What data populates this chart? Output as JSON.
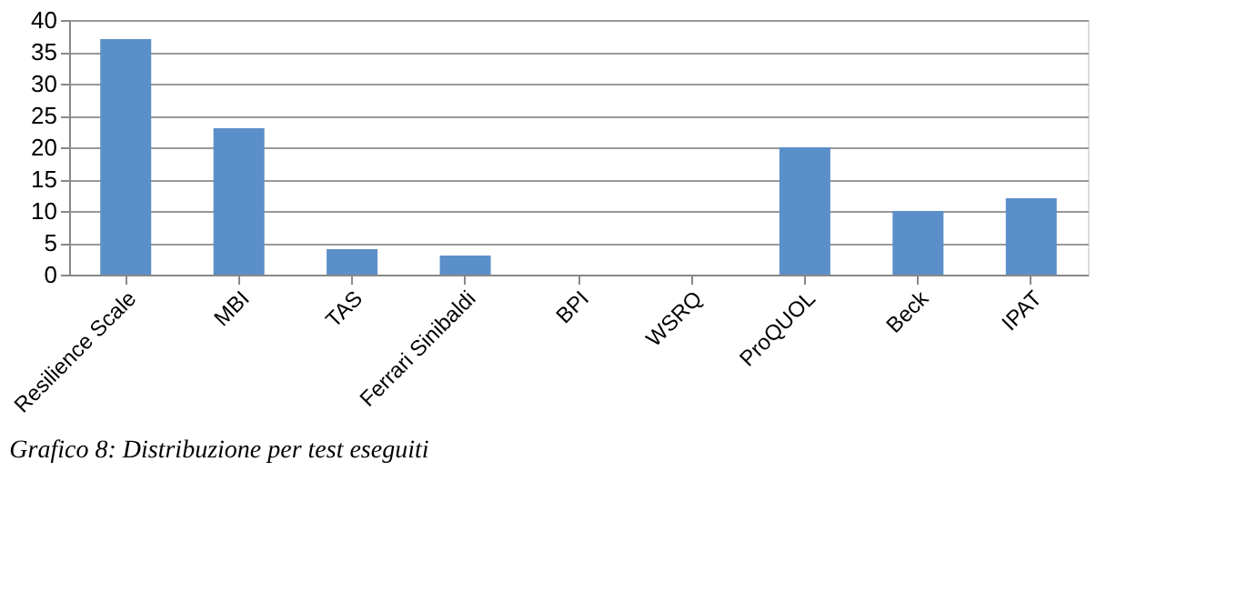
{
  "chart_data": {
    "type": "bar",
    "categories": [
      "Resilience Scale",
      "MBI",
      "TAS",
      "Ferrari Sinibaldi",
      "BPI",
      "WSRQ",
      "ProQUOL",
      "Beck",
      "IPAT"
    ],
    "values": [
      37,
      23,
      4,
      3,
      0,
      0,
      20,
      10,
      12
    ],
    "color": "#5b8fc9",
    "ylim": [
      0,
      40
    ],
    "yticks": [
      0,
      5,
      10,
      15,
      20,
      25,
      30,
      35,
      40
    ],
    "grid": "y",
    "annotations": [
      "Grafico 8: Distribuzione per test eseguiti"
    ]
  }
}
